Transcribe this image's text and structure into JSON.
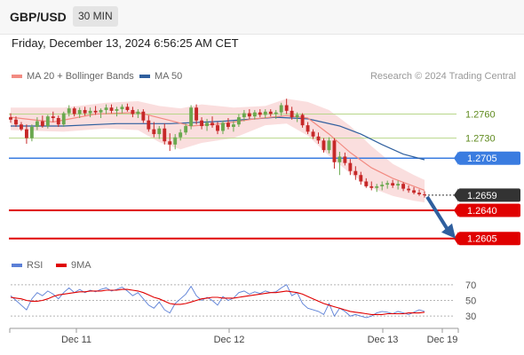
{
  "header": {
    "symbol": "GBP/USD",
    "timeframe": "30 MIN"
  },
  "datetime": "Friday, December 13, 2024 6:56:25 AM CET",
  "legend": {
    "ma20_label": "MA 20 + Bollinger Bands",
    "ma20_color": "#f28b82",
    "ma50_label": "MA 50",
    "ma50_color": "#2f5f9e",
    "credit": "Research © 2024 Trading Central"
  },
  "rsi_legend": {
    "rsi_label": "RSI",
    "rsi_color": "#5b7fd6",
    "ma9_label": "9MA",
    "ma9_color": "#e00000"
  },
  "chart_data": [
    {
      "type": "candlestick",
      "title": "GBP/USD 30 MIN",
      "x_ticks": [
        "Dec 11",
        "Dec 12",
        "Dec 13",
        "Dec 19"
      ],
      "ylim": [
        1.2587,
        1.2797
      ],
      "grid": false,
      "candles": [
        [
          1.2756,
          1.2761,
          1.2749,
          1.2753
        ],
        [
          1.2753,
          1.2757,
          1.2744,
          1.2747
        ],
        [
          1.2747,
          1.275,
          1.2739,
          1.2741
        ],
        [
          1.2741,
          1.2747,
          1.2723,
          1.273
        ],
        [
          1.273,
          1.2747,
          1.2726,
          1.2744
        ],
        [
          1.2744,
          1.2756,
          1.274,
          1.2751
        ],
        [
          1.2751,
          1.2758,
          1.2743,
          1.2745
        ],
        [
          1.2745,
          1.2759,
          1.2742,
          1.2757
        ],
        [
          1.2757,
          1.2763,
          1.275,
          1.2755
        ],
        [
          1.2755,
          1.2758,
          1.2744,
          1.2747
        ],
        [
          1.2747,
          1.2763,
          1.2744,
          1.2761
        ],
        [
          1.2761,
          1.2771,
          1.2757,
          1.2767
        ],
        [
          1.2767,
          1.2769,
          1.2757,
          1.276
        ],
        [
          1.276,
          1.2768,
          1.2755,
          1.2765
        ],
        [
          1.2765,
          1.2769,
          1.2758,
          1.2761
        ],
        [
          1.2761,
          1.2768,
          1.2756,
          1.2764
        ],
        [
          1.2764,
          1.277,
          1.2759,
          1.2762
        ],
        [
          1.2762,
          1.2767,
          1.2755,
          1.2765
        ],
        [
          1.2765,
          1.2772,
          1.276,
          1.2768
        ],
        [
          1.2768,
          1.2772,
          1.2761,
          1.2764
        ],
        [
          1.2764,
          1.2769,
          1.2757,
          1.2766
        ],
        [
          1.2766,
          1.2772,
          1.2761,
          1.2769
        ],
        [
          1.2769,
          1.2773,
          1.2763,
          1.2765
        ],
        [
          1.2765,
          1.2769,
          1.2756,
          1.276
        ],
        [
          1.276,
          1.2766,
          1.2755,
          1.2763
        ],
        [
          1.2763,
          1.2766,
          1.2749,
          1.2752
        ],
        [
          1.2752,
          1.2758,
          1.2738,
          1.2741
        ],
        [
          1.2741,
          1.275,
          1.2731,
          1.2735
        ],
        [
          1.2735,
          1.2745,
          1.2729,
          1.2742
        ],
        [
          1.2742,
          1.2748,
          1.2722,
          1.2726
        ],
        [
          1.2726,
          1.2736,
          1.2714,
          1.2722
        ],
        [
          1.2722,
          1.2735,
          1.2716,
          1.2731
        ],
        [
          1.2731,
          1.2741,
          1.2727,
          1.2737
        ],
        [
          1.2737,
          1.2748,
          1.2734,
          1.2745
        ],
        [
          1.2745,
          1.2771,
          1.2741,
          1.2768
        ],
        [
          1.2768,
          1.2772,
          1.2747,
          1.2752
        ],
        [
          1.2752,
          1.2756,
          1.2741,
          1.2745
        ],
        [
          1.2745,
          1.2754,
          1.2739,
          1.2749
        ],
        [
          1.2749,
          1.2757,
          1.2743,
          1.2746
        ],
        [
          1.2746,
          1.275,
          1.2735,
          1.2739
        ],
        [
          1.2739,
          1.2752,
          1.2735,
          1.2749
        ],
        [
          1.2749,
          1.2755,
          1.2741,
          1.2744
        ],
        [
          1.2744,
          1.2751,
          1.2738,
          1.2747
        ],
        [
          1.2747,
          1.276,
          1.2744,
          1.2756
        ],
        [
          1.2756,
          1.2765,
          1.2751,
          1.2761
        ],
        [
          1.2761,
          1.2766,
          1.2754,
          1.2757
        ],
        [
          1.2757,
          1.2765,
          1.2753,
          1.2762
        ],
        [
          1.2762,
          1.2766,
          1.2756,
          1.2759
        ],
        [
          1.2759,
          1.2766,
          1.2755,
          1.2763
        ],
        [
          1.2763,
          1.2766,
          1.2757,
          1.276
        ],
        [
          1.276,
          1.2765,
          1.2754,
          1.2762
        ],
        [
          1.2762,
          1.2774,
          1.2758,
          1.2771
        ],
        [
          1.2771,
          1.2779,
          1.276,
          1.2764
        ],
        [
          1.2764,
          1.2769,
          1.2753,
          1.2756
        ],
        [
          1.2756,
          1.2762,
          1.275,
          1.2759
        ],
        [
          1.2759,
          1.2761,
          1.2743,
          1.2746
        ],
        [
          1.2746,
          1.275,
          1.2735,
          1.2738
        ],
        [
          1.2738,
          1.2741,
          1.2729,
          1.2732
        ],
        [
          1.2732,
          1.2737,
          1.2723,
          1.2727
        ],
        [
          1.2727,
          1.273,
          1.2712,
          1.2715
        ],
        [
          1.2715,
          1.2731,
          1.2711,
          1.2727
        ],
        [
          1.2727,
          1.273,
          1.2692,
          1.27
        ],
        [
          1.27,
          1.2713,
          1.2684,
          1.2707
        ],
        [
          1.2707,
          1.2712,
          1.2696,
          1.2699
        ],
        [
          1.2699,
          1.2704,
          1.2684,
          1.2689
        ],
        [
          1.2689,
          1.2695,
          1.2678,
          1.2684
        ],
        [
          1.2684,
          1.2688,
          1.2672,
          1.2676
        ],
        [
          1.2676,
          1.268,
          1.2668,
          1.267
        ],
        [
          1.267,
          1.2676,
          1.2665,
          1.2668
        ],
        [
          1.2668,
          1.2673,
          1.2663,
          1.267
        ],
        [
          1.267,
          1.2676,
          1.2665,
          1.2672
        ],
        [
          1.2672,
          1.2677,
          1.2667,
          1.2674
        ],
        [
          1.2674,
          1.2678,
          1.2668,
          1.2671
        ],
        [
          1.2671,
          1.2677,
          1.2666,
          1.2673
        ],
        [
          1.2673,
          1.2675,
          1.2664,
          1.2667
        ],
        [
          1.2667,
          1.2671,
          1.2662,
          1.2665
        ],
        [
          1.2665,
          1.2669,
          1.266,
          1.2662
        ],
        [
          1.2662,
          1.2666,
          1.2658,
          1.266
        ],
        [
          1.266,
          1.2664,
          1.2656,
          1.2659
        ]
      ],
      "ma20": [
        [
          0,
          1.2756
        ],
        [
          8,
          1.275
        ],
        [
          16,
          1.276
        ],
        [
          24,
          1.2762
        ],
        [
          30,
          1.2752
        ],
        [
          34,
          1.2745
        ],
        [
          40,
          1.2748
        ],
        [
          46,
          1.2754
        ],
        [
          52,
          1.2758
        ],
        [
          56,
          1.2755
        ],
        [
          60,
          1.2735
        ],
        [
          64,
          1.2712
        ],
        [
          68,
          1.2693
        ],
        [
          72,
          1.268
        ],
        [
          78,
          1.2665
        ]
      ],
      "ma50": [
        [
          0,
          1.2745
        ],
        [
          10,
          1.2745
        ],
        [
          20,
          1.2748
        ],
        [
          30,
          1.2748
        ],
        [
          40,
          1.2751
        ],
        [
          50,
          1.2756
        ],
        [
          56,
          1.2754
        ],
        [
          62,
          1.2745
        ],
        [
          66,
          1.2735
        ],
        [
          70,
          1.2722
        ],
        [
          74,
          1.271
        ],
        [
          78,
          1.2703
        ]
      ],
      "bollinger_upper": [
        [
          0,
          1.2768
        ],
        [
          10,
          1.2768
        ],
        [
          18,
          1.2774
        ],
        [
          24,
          1.2776
        ],
        [
          28,
          1.277
        ],
        [
          32,
          1.2767
        ],
        [
          36,
          1.2772
        ],
        [
          42,
          1.2768
        ],
        [
          48,
          1.277
        ],
        [
          52,
          1.2779
        ],
        [
          56,
          1.2775
        ],
        [
          60,
          1.2765
        ],
        [
          64,
          1.2745
        ],
        [
          68,
          1.272
        ],
        [
          72,
          1.2698
        ],
        [
          76,
          1.2684
        ],
        [
          78,
          1.2678
        ]
      ],
      "bollinger_lower": [
        [
          0,
          1.274
        ],
        [
          10,
          1.2738
        ],
        [
          18,
          1.2742
        ],
        [
          24,
          1.274
        ],
        [
          28,
          1.2725
        ],
        [
          32,
          1.2716
        ],
        [
          36,
          1.2724
        ],
        [
          42,
          1.273
        ],
        [
          48,
          1.2746
        ],
        [
          52,
          1.2748
        ],
        [
          56,
          1.2733
        ],
        [
          60,
          1.2708
        ],
        [
          64,
          1.2686
        ],
        [
          68,
          1.2668
        ],
        [
          72,
          1.2658
        ],
        [
          76,
          1.2652
        ],
        [
          78,
          1.265
        ]
      ],
      "levels": [
        {
          "value": 1.276,
          "label": "1.2760",
          "kind": "resistance-light",
          "color": "#b8d68a"
        },
        {
          "value": 1.273,
          "label": "1.2730",
          "kind": "resistance-light",
          "color": "#b8d68a"
        },
        {
          "value": 1.2705,
          "label": "1.2705",
          "kind": "pivot",
          "color": "#3a7ce0"
        },
        {
          "value": 1.2659,
          "label": "1.2659",
          "kind": "last",
          "color": "#333333"
        },
        {
          "value": 1.264,
          "label": "1.2640",
          "kind": "support",
          "color": "#e00000"
        },
        {
          "value": 1.2605,
          "label": "1.2605",
          "kind": "support",
          "color": "#e00000"
        }
      ],
      "arrow": {
        "from": 1.2659,
        "to": 1.2605,
        "direction": "down",
        "color": "#2f5f9e"
      }
    },
    {
      "type": "line",
      "title": "RSI",
      "yticks": [
        "70",
        "50",
        "30"
      ],
      "ylim": [
        20,
        80
      ],
      "series": [
        {
          "name": "RSI",
          "values": [
            56,
            50,
            44,
            38,
            52,
            60,
            56,
            62,
            58,
            52,
            60,
            66,
            60,
            64,
            60,
            63,
            61,
            64,
            66,
            62,
            64,
            67,
            62,
            56,
            60,
            52,
            44,
            40,
            48,
            38,
            34,
            46,
            52,
            58,
            68,
            56,
            50,
            54,
            50,
            44,
            55,
            50,
            53,
            60,
            62,
            58,
            61,
            59,
            62,
            60,
            61,
            66,
            70,
            56,
            60,
            46,
            40,
            38,
            36,
            32,
            46,
            30,
            40,
            36,
            30,
            32,
            30,
            28,
            30,
            34,
            36,
            35,
            33,
            36,
            34,
            32,
            35,
            38,
            36
          ]
        },
        {
          "name": "9MA",
          "values": [
            54,
            53,
            52,
            50,
            49,
            49,
            50,
            52,
            55,
            57,
            58,
            59,
            60,
            61,
            61,
            62,
            62,
            62,
            63,
            63,
            63,
            64,
            64,
            63,
            62,
            60,
            57,
            54,
            52,
            49,
            46,
            45,
            45,
            46,
            48,
            50,
            52,
            53,
            54,
            54,
            53,
            53,
            53,
            54,
            55,
            56,
            57,
            58,
            59,
            60,
            60,
            61,
            62,
            61,
            60,
            58,
            55,
            52,
            49,
            46,
            44,
            42,
            40,
            38,
            36,
            35,
            34,
            33,
            32,
            32,
            32,
            33,
            33,
            33,
            33,
            34,
            34,
            34,
            35
          ]
        }
      ]
    }
  ]
}
